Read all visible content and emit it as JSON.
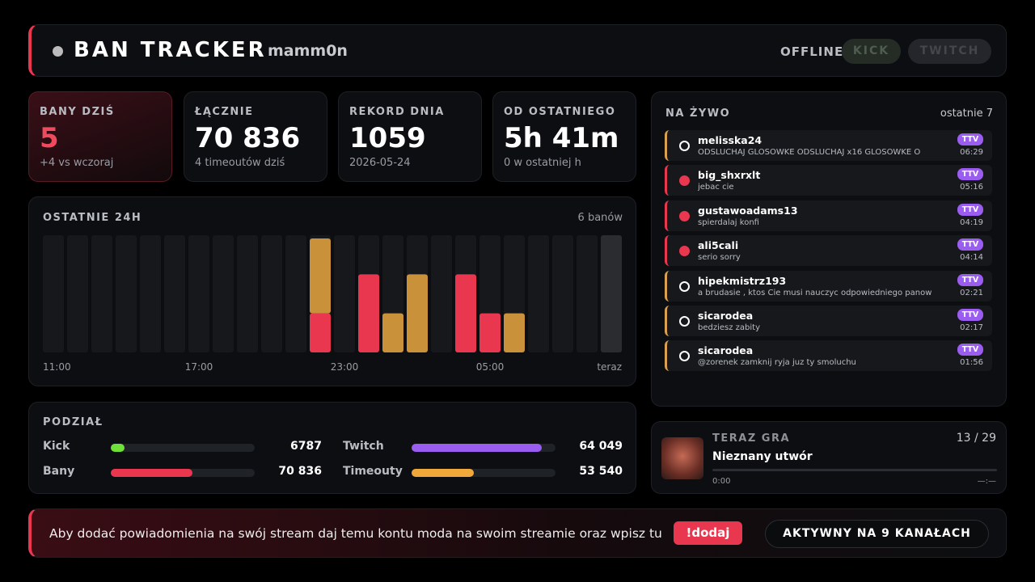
{
  "header": {
    "title": "BAN TRACKER",
    "channel": "mamm0n",
    "status": "OFFLINE",
    "buttons": [
      "KICK",
      "TWITCH"
    ]
  },
  "stats": [
    {
      "label": "BANY DZIŚ",
      "value": "5",
      "note": "+4 vs wczoraj"
    },
    {
      "label": "ŁĄCZNIE",
      "value": "70 836",
      "note": "4 timeoutów dziś"
    },
    {
      "label": "REKORD DNIA",
      "value": "1059",
      "note": "2026-05-24"
    },
    {
      "label": "OD OSTATNIEGO",
      "value": "5h 41m",
      "note": "0 w ostatniej h"
    }
  ],
  "chart_data": {
    "type": "bar",
    "stacked": true,
    "title": "OSTATNIE 24H",
    "subtitle": "6 banów",
    "categories": [
      "11:00",
      null,
      null,
      null,
      null,
      null,
      "17:00",
      null,
      null,
      null,
      null,
      null,
      "23:00",
      null,
      null,
      null,
      null,
      null,
      "05:00",
      null,
      null,
      null,
      null,
      "teraz"
    ],
    "series": [
      {
        "color": "#e8374f",
        "values": [
          0,
          0,
          0,
          0,
          0,
          0,
          0,
          0,
          0,
          0,
          0,
          1,
          0,
          2,
          0,
          0,
          0,
          2,
          1,
          0,
          0,
          0,
          0,
          0
        ]
      },
      {
        "color": "#c9913a",
        "values": [
          0,
          0,
          0,
          0,
          0,
          0,
          0,
          0,
          0,
          0,
          0,
          2,
          0,
          0,
          1,
          2,
          0,
          0,
          0,
          1,
          0,
          0,
          0,
          0
        ]
      }
    ],
    "ylim": [
      0,
      3
    ]
  },
  "split": {
    "title": "PODZIAŁ",
    "rows": [
      [
        {
          "label": "Kick",
          "value": 6787,
          "color": "#6fe03a"
        },
        {
          "label": "Twitch",
          "value": 64049,
          "value_label": "64 049",
          "color": "#9b5cf0"
        }
      ],
      [
        {
          "label": "Bany",
          "value": 70836,
          "value_label": "70 836",
          "color": "#e8374f"
        },
        {
          "label": "Timeouty",
          "value": 53540,
          "value_label": "53 540",
          "color": "#f0a83a"
        }
      ]
    ]
  },
  "live": {
    "title": "NA ŻYWO",
    "subtitle": "ostatnie 7",
    "items": [
      {
        "kind": "timeout",
        "user": "melisska24",
        "message": "ODSLUCHAJ GLOSOWKE ODSLUCHAJ x16 GLOSOWKE O",
        "badge": "TTV",
        "time": "06:29"
      },
      {
        "kind": "ban",
        "user": "big_shxrxlt",
        "message": "jebac cie",
        "badge": "TTV",
        "time": "05:16"
      },
      {
        "kind": "ban",
        "user": "gustawoadams13",
        "message": "spierdalaj konfi",
        "badge": "TTV",
        "time": "04:19"
      },
      {
        "kind": "ban",
        "user": "ali5cali",
        "message": "serio sorry",
        "badge": "TTV",
        "time": "04:14"
      },
      {
        "kind": "timeout",
        "user": "hipekmistrz193",
        "message": "a brudasie , ktos Cie musi nauczyc odpowiedniego panowania nad",
        "badge": "TTV",
        "time": "02:21"
      },
      {
        "kind": "timeout",
        "user": "sicarodea",
        "message": "bedziesz zabity",
        "badge": "TTV",
        "time": "02:17"
      },
      {
        "kind": "timeout",
        "user": "sicarodea",
        "message": "@zorenek zamknij ryja juz ty smoluchu",
        "badge": "TTV",
        "time": "01:56"
      }
    ]
  },
  "now_playing": {
    "label": "TERAZ GRA",
    "position": "13 / 29",
    "track": "Nieznany utwór",
    "elapsed": "0:00",
    "duration": "—:—"
  },
  "footer": {
    "text": "Aby dodać powiadomienia na swój stream daj temu kontu moda na swoim streamie oraz wpisz tu",
    "command": "!dodaj",
    "status": "AKTYWNY NA 9 KANAŁACH"
  }
}
